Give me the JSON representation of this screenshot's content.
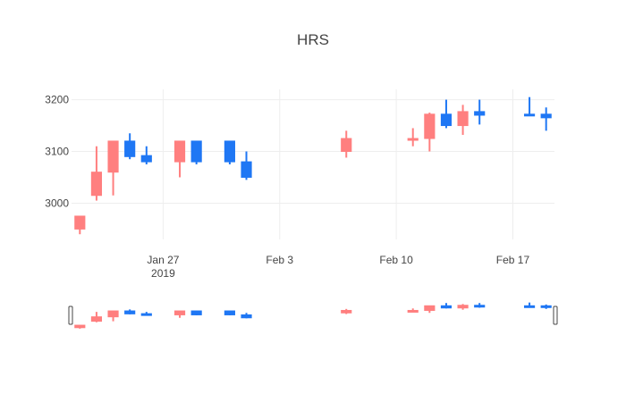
{
  "chart_data": {
    "type": "candlestick",
    "title": "HRS",
    "y_ticks": [
      3000,
      3100,
      3200
    ],
    "y_tick_labels": [
      "3000",
      "3100",
      "3200"
    ],
    "x_ticks": [
      {
        "date": "2019-01-27",
        "label": "Jan 27",
        "sublabel": "2019"
      },
      {
        "date": "2019-02-03",
        "label": "Feb 3",
        "sublabel": ""
      },
      {
        "date": "2019-02-10",
        "label": "Feb 10",
        "sublabel": ""
      },
      {
        "date": "2019-02-17",
        "label": "Feb 17",
        "sublabel": ""
      }
    ],
    "xlim": [
      "2019-01-22",
      "2019-02-19"
    ],
    "ylim": [
      2930,
      3220
    ],
    "grid": true,
    "legend": "none",
    "range_slider": true,
    "colors": {
      "increasing": "#1f77f4",
      "decreasing": "#ff7f7f"
    },
    "candles": [
      {
        "date": "2019-01-22",
        "open": 2975,
        "high": 2975,
        "low": 2940,
        "close": 2950
      },
      {
        "date": "2019-01-23",
        "open": 3060,
        "high": 3110,
        "low": 3005,
        "close": 3015
      },
      {
        "date": "2019-01-24",
        "open": 3120,
        "high": 3120,
        "low": 3015,
        "close": 3060
      },
      {
        "date": "2019-01-25",
        "open": 3090,
        "high": 3135,
        "low": 3085,
        "close": 3120
      },
      {
        "date": "2019-01-26",
        "open": 3080,
        "high": 3110,
        "low": 3075,
        "close": 3092
      },
      {
        "date": "2019-01-28",
        "open": 3120,
        "high": 3120,
        "low": 3050,
        "close": 3080
      },
      {
        "date": "2019-01-29",
        "open": 3080,
        "high": 3120,
        "low": 3075,
        "close": 3120
      },
      {
        "date": "2019-01-31",
        "open": 3080,
        "high": 3120,
        "low": 3075,
        "close": 3120
      },
      {
        "date": "2019-02-01",
        "open": 3050,
        "high": 3100,
        "low": 3045,
        "close": 3080
      },
      {
        "date": "2019-02-07",
        "open": 3125,
        "high": 3140,
        "low": 3088,
        "close": 3100
      },
      {
        "date": "2019-02-11",
        "open": 3125,
        "high": 3145,
        "low": 3110,
        "close": 3123
      },
      {
        "date": "2019-02-12",
        "open": 3172,
        "high": 3175,
        "low": 3100,
        "close": 3125
      },
      {
        "date": "2019-02-13",
        "open": 3150,
        "high": 3200,
        "low": 3145,
        "close": 3172
      },
      {
        "date": "2019-02-14",
        "open": 3177,
        "high": 3190,
        "low": 3132,
        "close": 3150
      },
      {
        "date": "2019-02-15",
        "open": 3170,
        "high": 3200,
        "low": 3152,
        "close": 3177
      },
      {
        "date": "2019-02-18",
        "open": 3170,
        "high": 3205,
        "low": 3170,
        "close": 3172
      },
      {
        "date": "2019-02-19",
        "open": 3165,
        "high": 3185,
        "low": 3140,
        "close": 3172
      }
    ]
  }
}
